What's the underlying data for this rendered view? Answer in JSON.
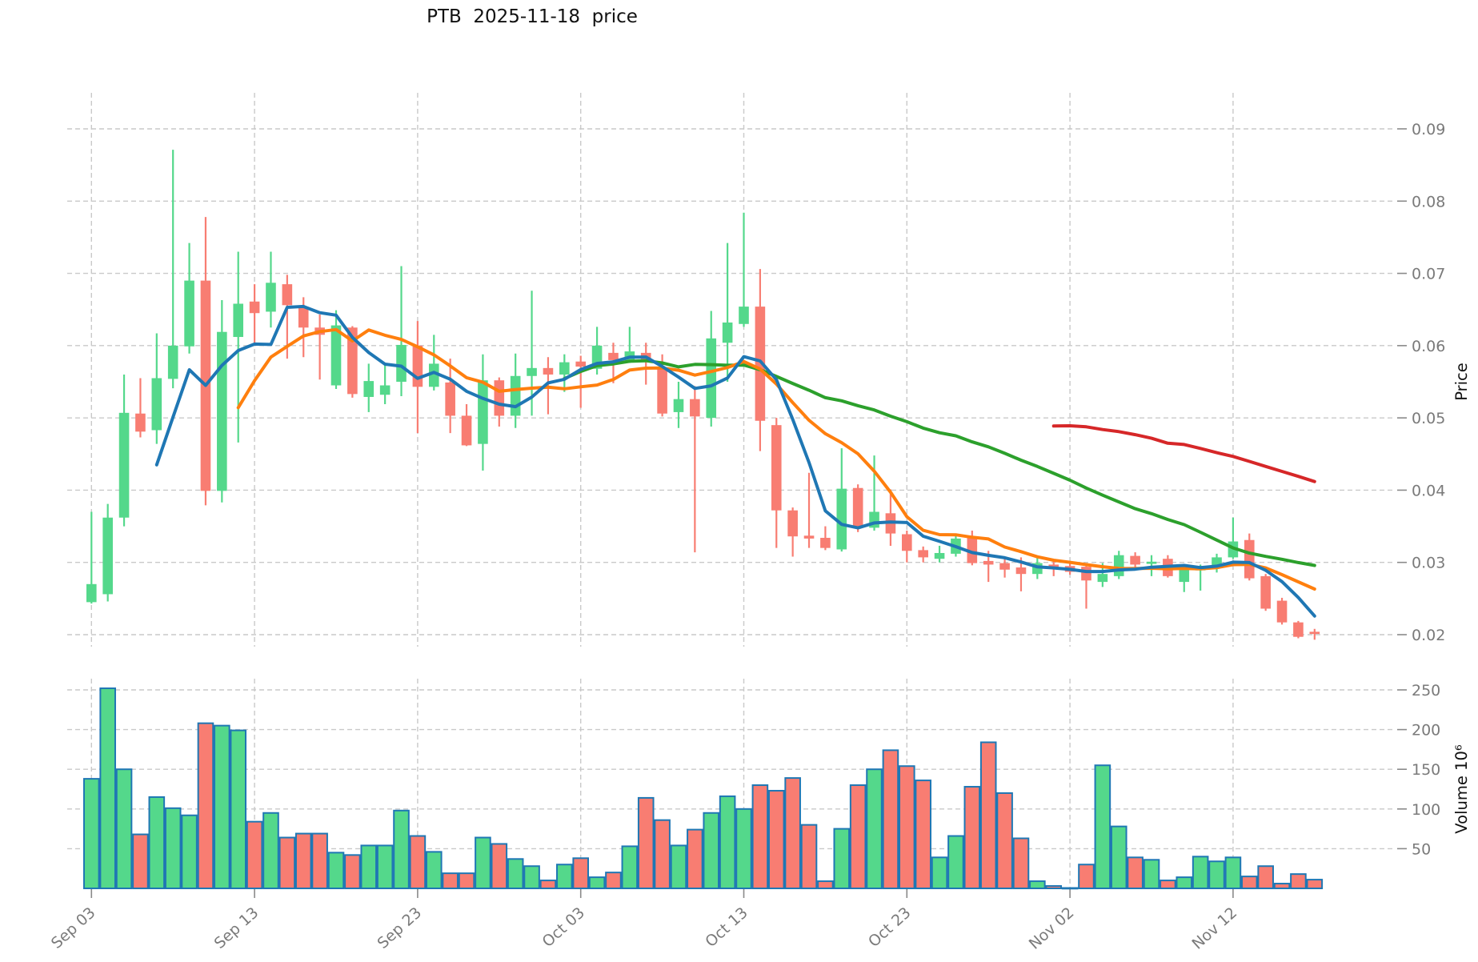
{
  "title": "PTB  2025-11-18  price",
  "colors": {
    "up": "#54d88b",
    "down": "#f87d72",
    "volume_edge": "#1f77b4",
    "grid": "#c9c9c9",
    "tick_text": "#7a7a7a",
    "axis_title_text": "#111111",
    "ma5": "#1f77b4",
    "ma10": "#ff7f0e",
    "ma30": "#2ca02c",
    "ma60": "#d62728"
  },
  "price_axis": {
    "label": "Price",
    "ticks": [
      0.02,
      0.03,
      0.04,
      0.05,
      0.06,
      0.07,
      0.08,
      0.09
    ]
  },
  "volume_axis": {
    "label": "Volume",
    "unit": "10⁶",
    "ticks": [
      50,
      100,
      150,
      200,
      250
    ]
  },
  "x_axis": {
    "tick_labels": [
      "Sep 03",
      "Sep 13",
      "Sep 23",
      "Oct 03",
      "Oct 13",
      "Oct 23",
      "Nov 02",
      "Nov 12"
    ],
    "tick_indices": [
      0,
      10,
      20,
      30,
      40,
      50,
      60,
      70
    ]
  },
  "chart_data": {
    "type": "candlestick",
    "symbol": "PTB",
    "title": "PTB  2025-11-18  price",
    "ylabel": "Price",
    "ylabel_volume": "Volume  10⁶",
    "ylim_price": [
      0.0165,
      0.0925
    ],
    "ylim_volume": [
      0,
      260
    ],
    "grid": true,
    "legend": false,
    "dates": [
      "2025-09-03",
      "2025-09-04",
      "2025-09-05",
      "2025-09-06",
      "2025-09-07",
      "2025-09-08",
      "2025-09-09",
      "2025-09-10",
      "2025-09-11",
      "2025-09-12",
      "2025-09-13",
      "2025-09-14",
      "2025-09-15",
      "2025-09-16",
      "2025-09-17",
      "2025-09-18",
      "2025-09-19",
      "2025-09-20",
      "2025-09-21",
      "2025-09-22",
      "2025-09-23",
      "2025-09-24",
      "2025-09-25",
      "2025-09-26",
      "2025-09-27",
      "2025-09-28",
      "2025-09-29",
      "2025-09-30",
      "2025-10-01",
      "2025-10-02",
      "2025-10-03",
      "2025-10-04",
      "2025-10-05",
      "2025-10-06",
      "2025-10-07",
      "2025-10-08",
      "2025-10-09",
      "2025-10-10",
      "2025-10-11",
      "2025-10-12",
      "2025-10-13",
      "2025-10-14",
      "2025-10-15",
      "2025-10-16",
      "2025-10-17",
      "2025-10-18",
      "2025-10-19",
      "2025-10-20",
      "2025-10-21",
      "2025-10-22",
      "2025-10-23",
      "2025-10-24",
      "2025-10-25",
      "2025-10-26",
      "2025-10-27",
      "2025-10-28",
      "2025-10-29",
      "2025-10-30",
      "2025-10-31",
      "2025-11-01",
      "2025-11-02",
      "2025-11-03",
      "2025-11-04",
      "2025-11-05",
      "2025-11-06",
      "2025-11-07",
      "2025-11-08",
      "2025-11-09",
      "2025-11-10",
      "2025-11-11",
      "2025-11-12",
      "2025-11-13",
      "2025-11-14",
      "2025-11-15",
      "2025-11-16",
      "2025-11-17"
    ],
    "open": [
      0.0245,
      0.0256,
      0.0362,
      0.0506,
      0.0483,
      0.0554,
      0.0599,
      0.069,
      0.0399,
      0.0612,
      0.0661,
      0.0647,
      0.0685,
      0.0652,
      0.0625,
      0.0545,
      0.0625,
      0.0529,
      0.0532,
      0.055,
      0.06,
      0.0543,
      0.0549,
      0.0503,
      0.0464,
      0.0552,
      0.0503,
      0.0558,
      0.0569,
      0.056,
      0.0578,
      0.0568,
      0.059,
      0.0578,
      0.059,
      0.0568,
      0.0508,
      0.0526,
      0.05,
      0.0604,
      0.063,
      0.0654,
      0.049,
      0.0372,
      0.0337,
      0.0334,
      0.0318,
      0.0403,
      0.0348,
      0.0368,
      0.0339,
      0.0317,
      0.0305,
      0.0312,
      0.0334,
      0.0302,
      0.0299,
      0.0293,
      0.0284,
      0.0297,
      0.0295,
      0.0294,
      0.0273,
      0.0281,
      0.0309,
      0.0298,
      0.0305,
      0.0273,
      0.0289,
      0.0293,
      0.0307,
      0.0331,
      0.0281,
      0.0247,
      0.0217,
      0.0204
    ],
    "high": [
      0.037,
      0.0381,
      0.056,
      0.0555,
      0.0617,
      0.0871,
      0.0742,
      0.0778,
      0.0663,
      0.073,
      0.0685,
      0.073,
      0.0698,
      0.0667,
      0.0643,
      0.0649,
      0.0627,
      0.0575,
      0.0573,
      0.071,
      0.0634,
      0.0615,
      0.0582,
      0.0519,
      0.0588,
      0.0556,
      0.0589,
      0.0676,
      0.0584,
      0.0588,
      0.0586,
      0.0626,
      0.0604,
      0.0626,
      0.0604,
      0.0588,
      0.055,
      0.0544,
      0.0648,
      0.0742,
      0.0784,
      0.0706,
      0.05,
      0.0376,
      0.0424,
      0.035,
      0.0458,
      0.0408,
      0.0448,
      0.0401,
      0.0344,
      0.0322,
      0.0323,
      0.034,
      0.0344,
      0.0316,
      0.0307,
      0.0307,
      0.0309,
      0.0302,
      0.03,
      0.0299,
      0.0299,
      0.0316,
      0.0314,
      0.031,
      0.031,
      0.0296,
      0.0297,
      0.0312,
      0.0362,
      0.034,
      0.0284,
      0.0251,
      0.0219,
      0.0208
    ],
    "low": [
      0.0243,
      0.0246,
      0.035,
      0.0473,
      0.0464,
      0.0541,
      0.0589,
      0.0379,
      0.0383,
      0.0466,
      0.06,
      0.0625,
      0.0582,
      0.0584,
      0.0553,
      0.054,
      0.0528,
      0.0508,
      0.0519,
      0.053,
      0.0479,
      0.0538,
      0.0479,
      0.0461,
      0.0427,
      0.0488,
      0.0486,
      0.0503,
      0.0505,
      0.0536,
      0.0514,
      0.056,
      0.0548,
      0.0576,
      0.0546,
      0.0502,
      0.0486,
      0.0314,
      0.0488,
      0.055,
      0.0626,
      0.0454,
      0.032,
      0.0308,
      0.032,
      0.0317,
      0.0315,
      0.0342,
      0.0344,
      0.0323,
      0.03,
      0.03,
      0.03,
      0.0308,
      0.0296,
      0.0273,
      0.0279,
      0.026,
      0.0277,
      0.0281,
      0.0283,
      0.0236,
      0.0266,
      0.0277,
      0.0293,
      0.0281,
      0.0279,
      0.0259,
      0.0261,
      0.0286,
      0.0305,
      0.0275,
      0.0233,
      0.0214,
      0.0195,
      0.0193
    ],
    "close": [
      0.027,
      0.0362,
      0.0507,
      0.0481,
      0.0555,
      0.06,
      0.069,
      0.0399,
      0.0619,
      0.0658,
      0.0645,
      0.0687,
      0.0656,
      0.0625,
      0.0615,
      0.0628,
      0.0533,
      0.0551,
      0.0545,
      0.0601,
      0.0543,
      0.0575,
      0.0503,
      0.0462,
      0.0552,
      0.0503,
      0.0558,
      0.0569,
      0.056,
      0.0577,
      0.0571,
      0.06,
      0.058,
      0.0592,
      0.0578,
      0.0506,
      0.0526,
      0.0502,
      0.061,
      0.0632,
      0.0654,
      0.0496,
      0.0372,
      0.0336,
      0.0333,
      0.032,
      0.0402,
      0.0348,
      0.037,
      0.034,
      0.0316,
      0.0307,
      0.0313,
      0.0333,
      0.0299,
      0.0297,
      0.029,
      0.0284,
      0.0299,
      0.0292,
      0.0287,
      0.0275,
      0.0284,
      0.031,
      0.0297,
      0.0301,
      0.0281,
      0.029,
      0.0295,
      0.0307,
      0.0329,
      0.0278,
      0.0236,
      0.0217,
      0.0197,
      0.0201
    ],
    "volume_millions": [
      138,
      252,
      150,
      68,
      115,
      101,
      92,
      208,
      205,
      199,
      84,
      95,
      64,
      69,
      69,
      45,
      42,
      54,
      54,
      98,
      66,
      46,
      19,
      19,
      64,
      56,
      37,
      28,
      10,
      30,
      38,
      14,
      20,
      53,
      114,
      86,
      54,
      74,
      95,
      116,
      100,
      130,
      123,
      139,
      80,
      9,
      75,
      130,
      150,
      174,
      154,
      136,
      39,
      66,
      128,
      184,
      120,
      63,
      9,
      3,
      0.5,
      30,
      155,
      78,
      39,
      36,
      10,
      14,
      40,
      34,
      39,
      15,
      28,
      6,
      18,
      11
    ],
    "moving_averages": [
      {
        "name": "SMA5",
        "window": 5,
        "color": "#1f77b4"
      },
      {
        "name": "SMA10",
        "window": 10,
        "color": "#ff7f0e"
      },
      {
        "name": "SMA30",
        "window": 30,
        "color": "#2ca02c"
      },
      {
        "name": "SMA60",
        "window": 60,
        "color": "#d62728"
      }
    ]
  }
}
